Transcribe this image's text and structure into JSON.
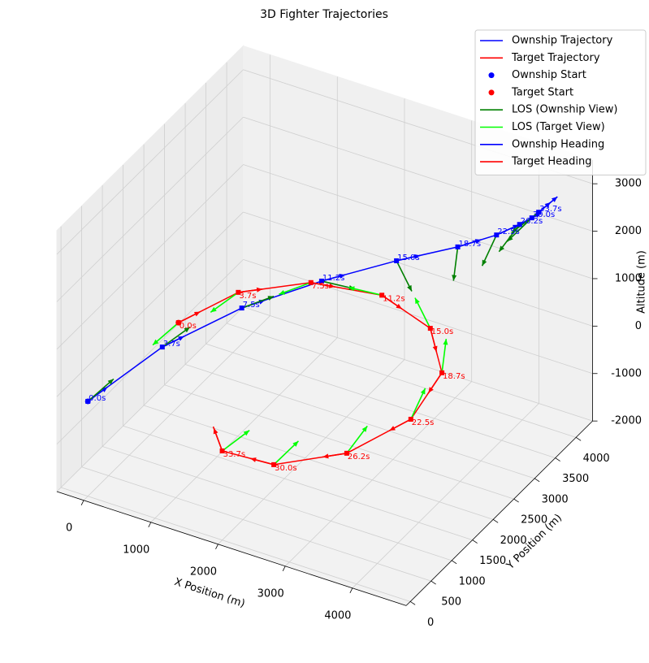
{
  "chart_data": {
    "type": "line3d",
    "title": "3D Fighter Trajectories",
    "xlabel": "X Position (m)",
    "ylabel": "Y Position (m)",
    "zlabel": "Altitude (m)",
    "xlim": [
      -400,
      4800
    ],
    "ylim": [
      -100,
      4400
    ],
    "zlim": [
      -2000,
      3500
    ],
    "xticks": [
      0,
      1000,
      2000,
      3000,
      4000
    ],
    "yticks": [
      0,
      500,
      1000,
      1500,
      2000,
      2500,
      3000,
      3500,
      4000
    ],
    "zticks": [
      -2000,
      -1000,
      0,
      1000,
      2000,
      3000
    ],
    "grid": true,
    "legend": "upper right",
    "series": [
      {
        "name": "Ownship Trajectory",
        "color": "#0000ff",
        "start_name": "Ownship Start",
        "los_name": "LOS (Ownship View)",
        "los_color": "#008000",
        "heading_name": "Ownship Heading",
        "heading_color": "#0000ff",
        "x": [
          0,
          380,
          990,
          1740,
          2510,
          3200,
          3660,
          3960,
          4130,
          4250
        ],
        "y": [
          0,
          1180,
          2110,
          2820,
          3380,
          3740,
          3930,
          4000,
          4020,
          3990
        ],
        "z": [
          0,
          300,
          600,
          900,
          1200,
          1500,
          1800,
          2100,
          2300,
          2500
        ],
        "labels": [
          "0.0s",
          "3.7s",
          "7.5s",
          "11.2s",
          "15.0s",
          "18.7s",
          "22.5s",
          "26.2s",
          "30.0s",
          "33.7s"
        ]
      },
      {
        "name": "Target Trajectory",
        "color": "#ff0000",
        "start_name": "Target Start",
        "los_name": "LOS (Target View)",
        "los_color": "#00ff00",
        "heading_name": "Target Heading",
        "heading_color": "#ff0000",
        "x": [
          930,
          1080,
          1600,
          2360,
          3100,
          3550,
          3550,
          3040,
          2170,
          1260,
          830
        ],
        "y": [
          680,
          1880,
          2790,
          3270,
          3240,
          2790,
          2040,
          1320,
          970,
          1200,
          1680
        ],
        "z": [
          1500,
          1170,
          830,
          500,
          170,
          -170,
          -500,
          -830,
          -1170,
          -1500,
          -1600
        ],
        "labels": [
          "0.0s",
          "3.7s",
          "7.5s",
          "11.2s",
          "15.0s",
          "18.7s",
          "22.5s",
          "26.2s",
          "30.0s",
          "33.7s",
          null
        ]
      }
    ]
  }
}
